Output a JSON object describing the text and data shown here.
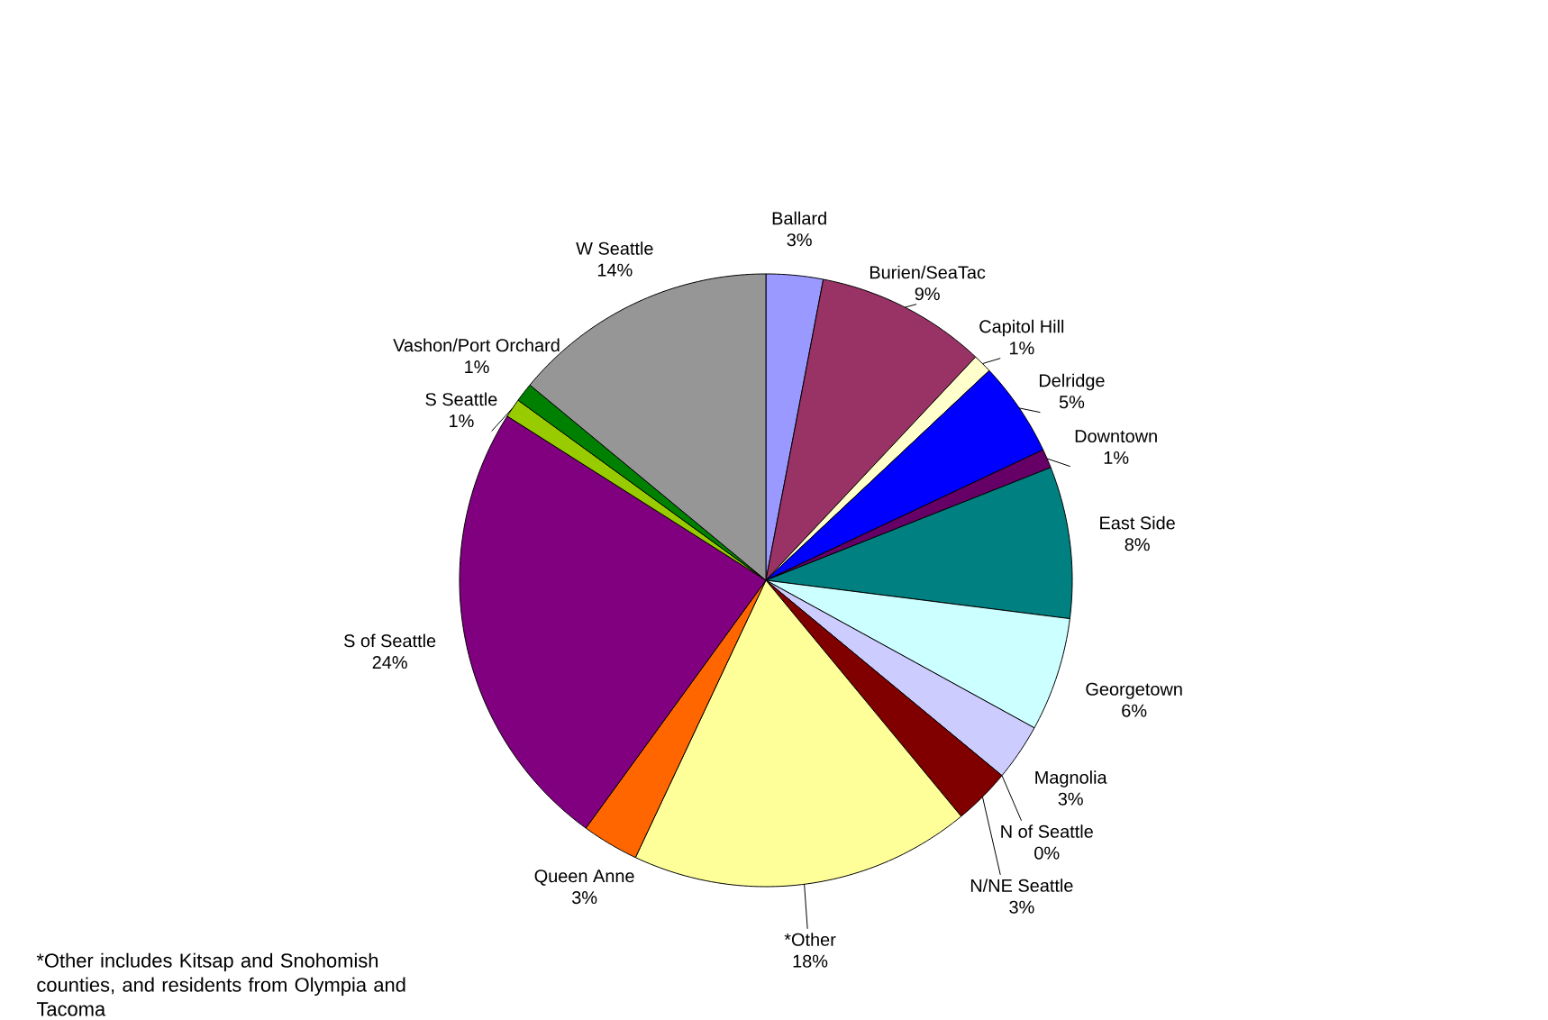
{
  "chart_data": {
    "type": "pie",
    "categories": [
      "Ballard",
      "Burien/SeaTac",
      "Capitol Hill",
      "Delridge",
      "Downtown",
      "East Side",
      "Georgetown",
      "Magnolia",
      "N of Seattle",
      "N/NE Seattle",
      "*Other",
      "Queen Anne",
      "S of Seattle",
      "S Seattle",
      "Vashon/Port Orchard",
      "W Seattle"
    ],
    "values": [
      3,
      9,
      1,
      5,
      1,
      8,
      6,
      3,
      0,
      3,
      18,
      3,
      24,
      1,
      1,
      14
    ],
    "value_labels": [
      "3%",
      "9%",
      "1%",
      "5%",
      "1%",
      "8%",
      "6%",
      "3%",
      "0%",
      "3%",
      "18%",
      "3%",
      "24%",
      "1%",
      "1%",
      "14%"
    ],
    "colors": [
      "#9999ff",
      "#993366",
      "#ffffcc",
      "#0000ff",
      "#660066",
      "#008080",
      "#ccffff",
      "#ccccff",
      "#000080",
      "#800000",
      "#ffff99",
      "#ff6600",
      "#800080",
      "#99cc00",
      "#008000",
      "#969696"
    ],
    "annotations": [
      "*Other includes Kitsap and Snohomish counties, and residents from Olympia and Tacoma"
    ]
  }
}
